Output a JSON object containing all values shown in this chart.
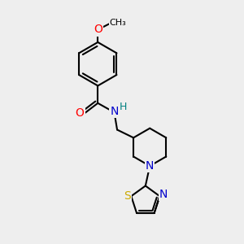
{
  "bg_color": "#eeeeee",
  "bond_color": "#000000",
  "bond_width": 1.5,
  "atom_colors": {
    "O": "#ff0000",
    "N": "#0000cc",
    "S": "#ccaa00",
    "H": "#008080",
    "C": "#000000"
  },
  "font_size": 9
}
